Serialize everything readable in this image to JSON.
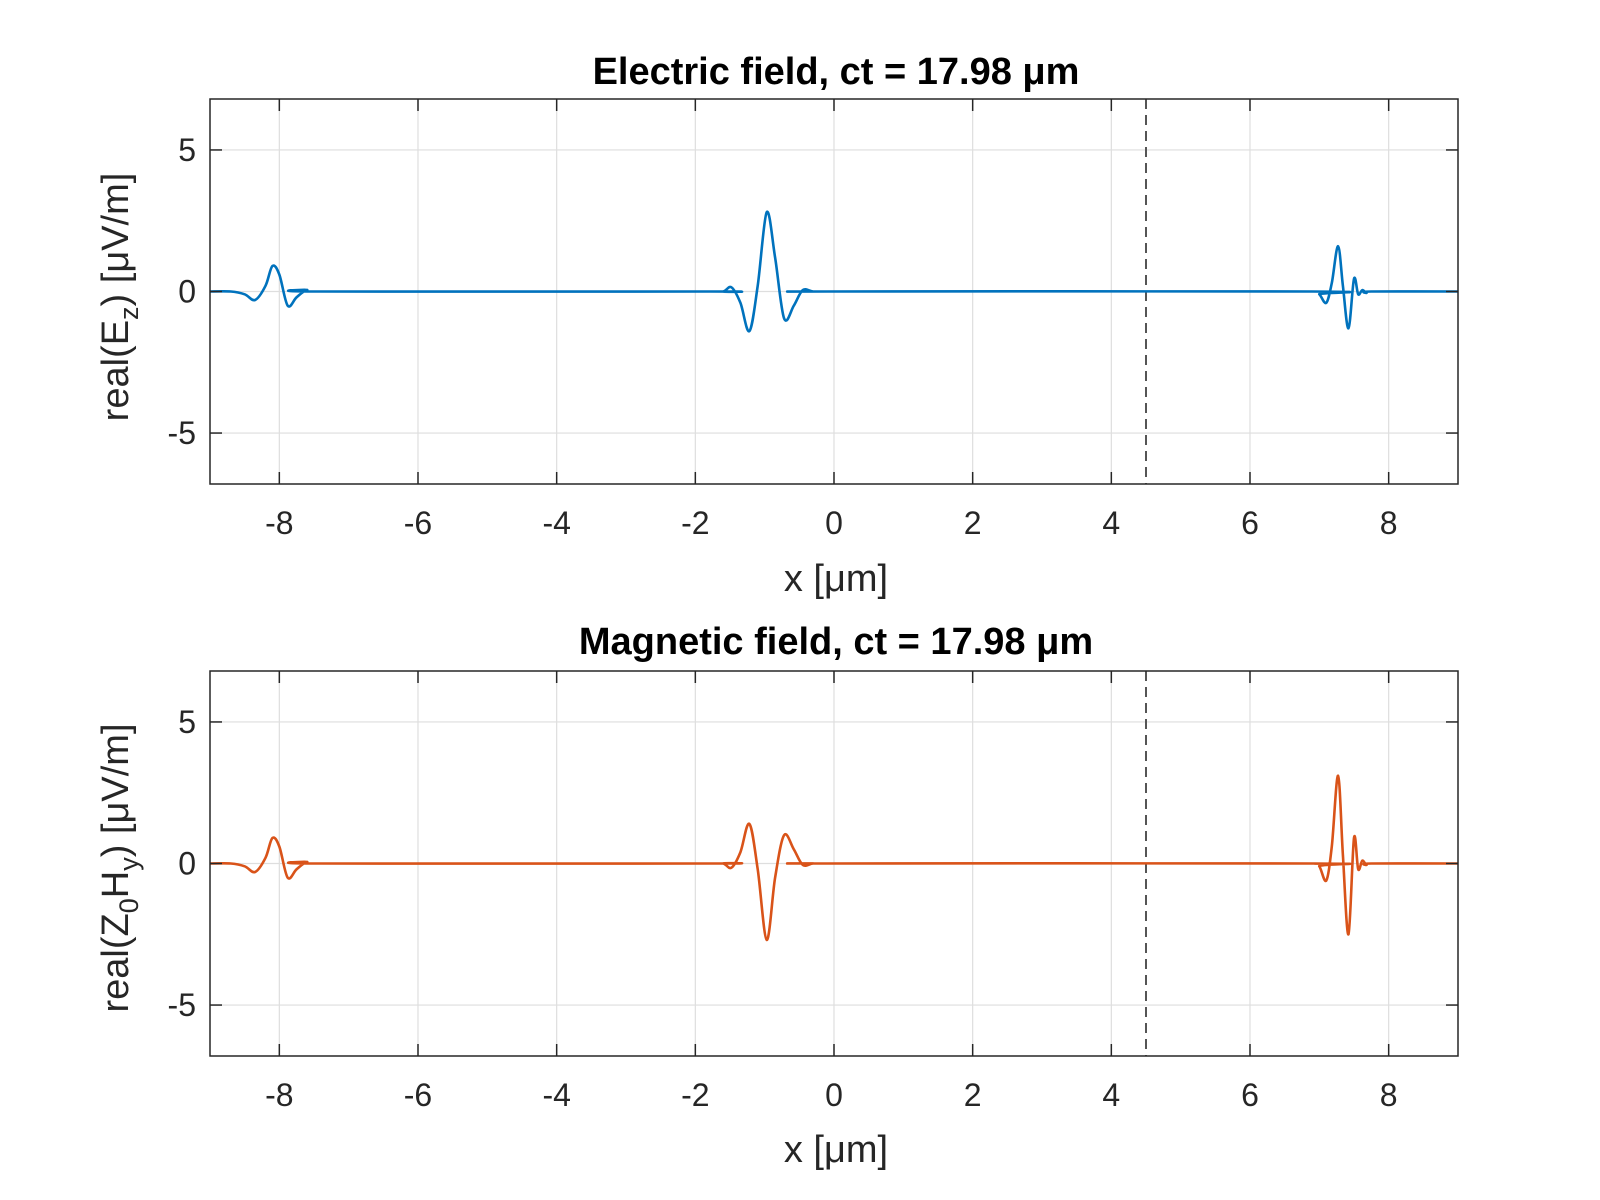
{
  "chart_data": [
    {
      "type": "line",
      "title": "Electric field, ct = 17.98 μm",
      "xlabel": "x [μm]",
      "ylabel_parts": [
        "real(E",
        "z",
        ") [μV/m]"
      ],
      "xlim": [
        -9,
        9
      ],
      "ylim": [
        -6.8,
        6.8
      ],
      "xticks": [
        -8,
        -6,
        -4,
        -2,
        0,
        2,
        4,
        6,
        8
      ],
      "yticks": [
        -5,
        0,
        5
      ],
      "grid": true,
      "marker_x": 4.5,
      "color": "#0072BD",
      "x": [
        -9.0,
        -8.7,
        -8.5,
        -8.35,
        -8.2,
        -8.1,
        -8.0,
        -7.88,
        -7.75,
        -7.6,
        -7.4,
        -1.8,
        -1.6,
        -1.48,
        -1.35,
        -1.22,
        -1.1,
        -0.97,
        -0.85,
        -0.72,
        -0.58,
        -0.45,
        -0.3,
        -0.1,
        6.9,
        7.0,
        7.1,
        7.18,
        7.27,
        7.34,
        7.42,
        7.5,
        7.56,
        7.62,
        7.68,
        7.75,
        9.0
      ],
      "values": [
        0.0,
        0.0,
        -0.1,
        -0.3,
        0.2,
        0.9,
        0.6,
        -0.5,
        -0.2,
        0.05,
        0.0,
        0.0,
        0.0,
        0.15,
        -0.4,
        -1.4,
        0.2,
        2.8,
        1.2,
        -0.95,
        -0.5,
        0.05,
        0.0,
        0.0,
        0.0,
        -0.1,
        -0.4,
        0.3,
        1.6,
        0.2,
        -1.3,
        0.45,
        -0.1,
        0.05,
        -0.05,
        0.0,
        0.0
      ]
    },
    {
      "type": "line",
      "title": "Magnetic field, ct = 17.98 μm",
      "xlabel": "x [μm]",
      "ylabel_parts": [
        "real(Z",
        "0",
        "H",
        "y",
        ") [μV/m]"
      ],
      "xlim": [
        -9,
        9
      ],
      "ylim": [
        -6.8,
        6.8
      ],
      "xticks": [
        -8,
        -6,
        -4,
        -2,
        0,
        2,
        4,
        6,
        8
      ],
      "yticks": [
        -5,
        0,
        5
      ],
      "grid": true,
      "marker_x": 4.5,
      "color": "#D95319",
      "x": [
        -9.0,
        -8.7,
        -8.5,
        -8.35,
        -8.2,
        -8.1,
        -8.0,
        -7.88,
        -7.75,
        -7.6,
        -7.4,
        -1.8,
        -1.6,
        -1.48,
        -1.35,
        -1.22,
        -1.1,
        -0.97,
        -0.85,
        -0.72,
        -0.58,
        -0.45,
        -0.3,
        -0.1,
        6.9,
        7.0,
        7.1,
        7.18,
        7.27,
        7.34,
        7.42,
        7.5,
        7.56,
        7.62,
        7.68,
        7.75,
        9.0
      ],
      "values": [
        0.0,
        0.0,
        -0.1,
        -0.3,
        0.2,
        0.9,
        0.6,
        -0.5,
        -0.2,
        0.05,
        0.0,
        0.0,
        0.0,
        -0.15,
        0.4,
        1.4,
        -0.2,
        -2.7,
        -0.5,
        1.0,
        0.5,
        -0.05,
        0.0,
        0.0,
        0.0,
        -0.1,
        -0.6,
        0.6,
        3.1,
        0.3,
        -2.5,
        0.9,
        -0.2,
        0.1,
        -0.05,
        0.0,
        0.0
      ]
    }
  ]
}
